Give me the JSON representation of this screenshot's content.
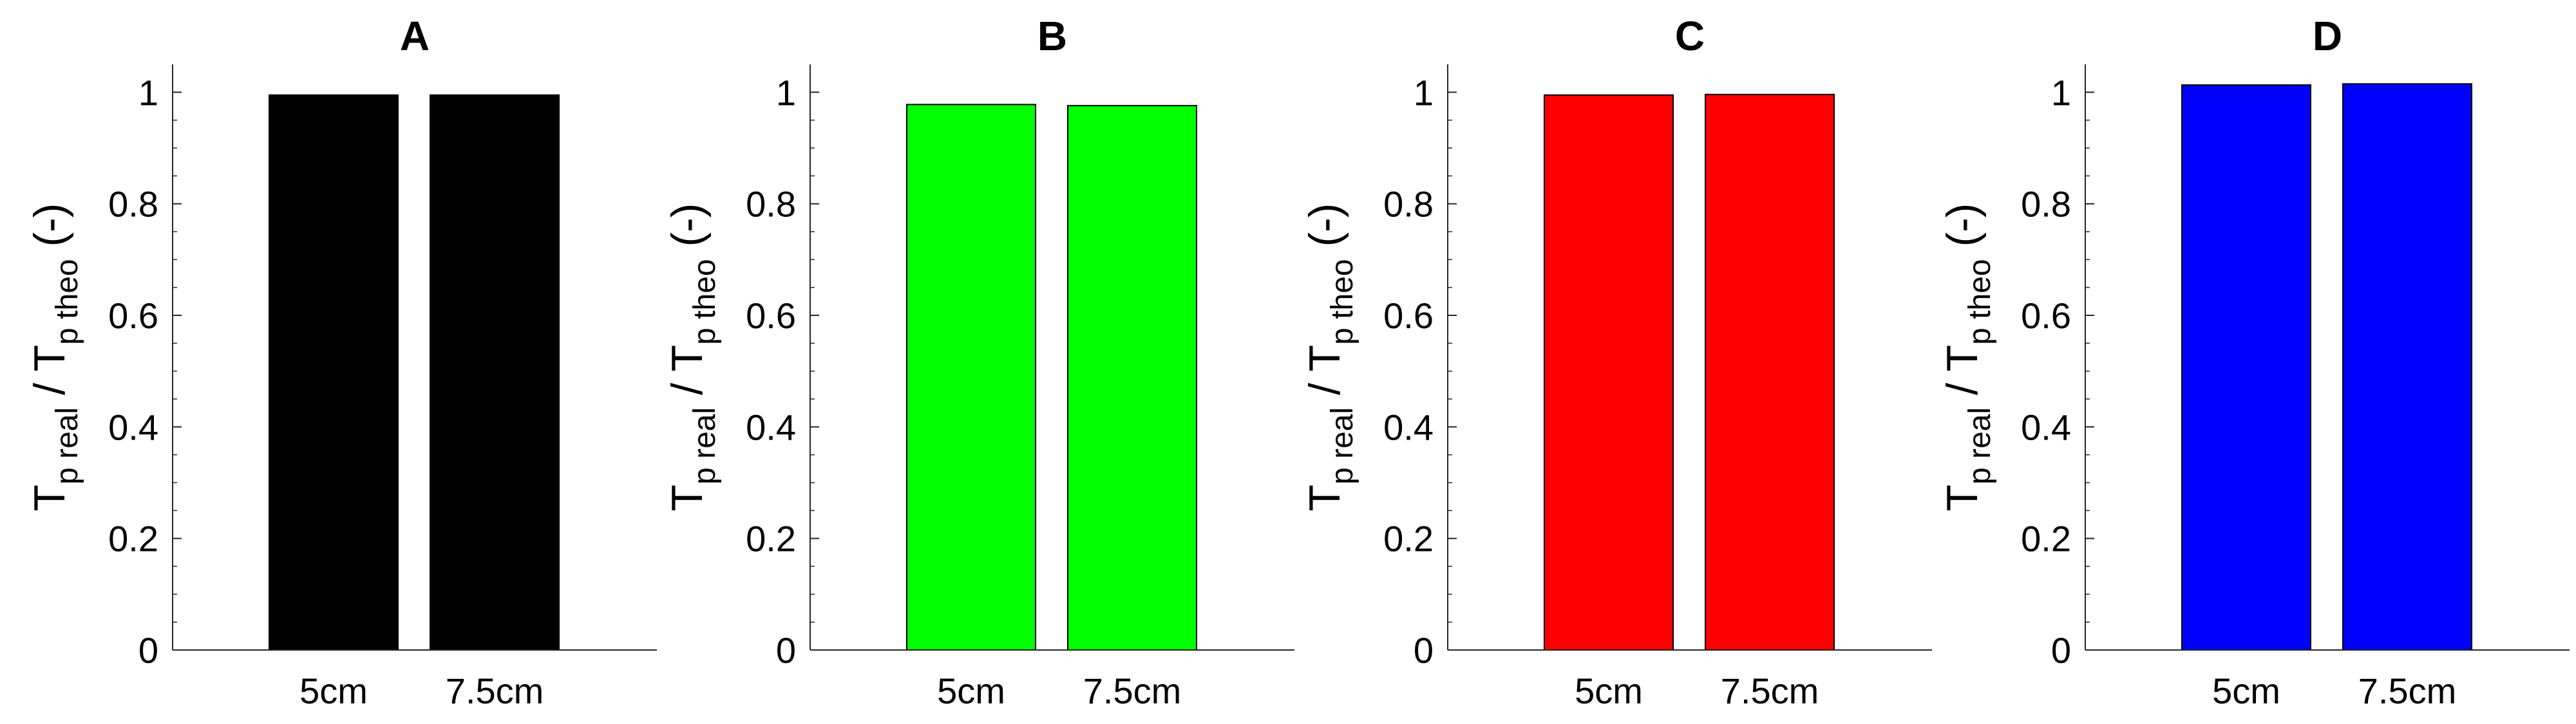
{
  "chart_data": [
    {
      "type": "bar",
      "title": "A",
      "categories": [
        "5cm",
        "7.5cm"
      ],
      "values": [
        0.995,
        0.995
      ],
      "bar_color": "#000000",
      "ylim": [
        0,
        1.05
      ],
      "yticks": [
        "0",
        "0.2",
        "0.4",
        "0.6",
        "0.8",
        "1"
      ],
      "ylabel": {
        "main1": "T",
        "sub1": "p real",
        "mid": " / T",
        "sub2": "p theo",
        "end": " (-)"
      },
      "xlabel": ""
    },
    {
      "type": "bar",
      "title": "B",
      "categories": [
        "5cm",
        "7.5cm"
      ],
      "values": [
        0.978,
        0.976
      ],
      "bar_color": "#00ff00",
      "ylim": [
        0,
        1.05
      ],
      "yticks": [
        "0",
        "0.2",
        "0.4",
        "0.6",
        "0.8",
        "1"
      ],
      "ylabel": {
        "main1": "T",
        "sub1": "p real",
        "mid": " / T",
        "sub2": "p theo",
        "end": " (-)"
      },
      "xlabel": ""
    },
    {
      "type": "bar",
      "title": "C",
      "categories": [
        "5cm",
        "7.5cm"
      ],
      "values": [
        0.995,
        0.996
      ],
      "bar_color": "#ff0000",
      "ylim": [
        0,
        1.05
      ],
      "yticks": [
        "0",
        "0.2",
        "0.4",
        "0.6",
        "0.8",
        "1"
      ],
      "ylabel": {
        "main1": "T",
        "sub1": "p real",
        "mid": " / T",
        "sub2": "p theo",
        "end": " (-)"
      },
      "xlabel": ""
    },
    {
      "type": "bar",
      "title": "D",
      "categories": [
        "5cm",
        "7.5cm"
      ],
      "values": [
        1.013,
        1.015
      ],
      "bar_color": "#0000ff",
      "ylim": [
        0,
        1.05
      ],
      "yticks": [
        "0",
        "0.2",
        "0.4",
        "0.6",
        "0.8",
        "1"
      ],
      "ylabel": {
        "main1": "T",
        "sub1": "p real",
        "mid": " / T",
        "sub2": "p theo",
        "end": " (-)"
      },
      "xlabel": ""
    }
  ]
}
